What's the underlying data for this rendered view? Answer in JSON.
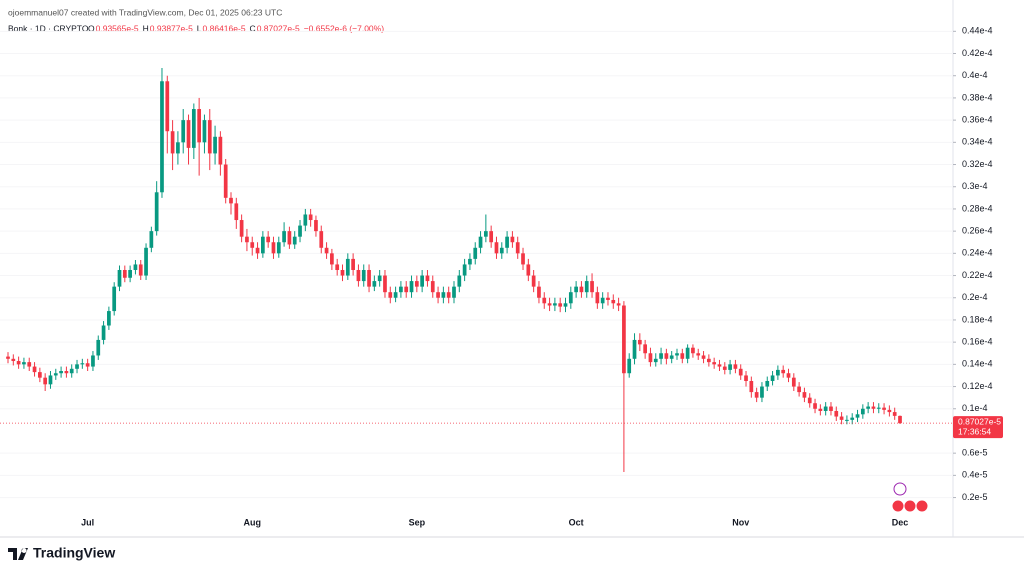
{
  "chart_data": {
    "type": "candlestick",
    "header": {
      "author_line": "ojoemmanuel07 created with TradingView.com, Dec 01, 2025 06:23 UTC",
      "symbol": "Bonk · 1D · CRYPTO",
      "ohlc": [
        {
          "key": "O",
          "value": "0.93565e-5"
        },
        {
          "key": "H",
          "value": "0.93877e-5"
        },
        {
          "key": "L",
          "value": "0.86416e-5"
        },
        {
          "key": "C",
          "value": "0.87027e-5"
        }
      ],
      "change": "−0.6552e-6 (−7.00%)"
    },
    "last_label": "0.87027e-5",
    "countdown": "17:36:54",
    "logo": "TradingView",
    "up_color": "#089981",
    "down_color": "#f23645",
    "grid": true,
    "ylim": [
      0.07,
      4.61
    ],
    "yticks": [
      {
        "value": 0.2,
        "label": "0.2e-5"
      },
      {
        "value": 0.4,
        "label": "0.4e-5"
      },
      {
        "value": 0.6,
        "label": "0.6e-5"
      },
      {
        "value": 1.0,
        "label": "0.1e-4"
      },
      {
        "value": 1.2,
        "label": "0.12e-4"
      },
      {
        "value": 1.4,
        "label": "0.14e-4"
      },
      {
        "value": 1.6,
        "label": "0.16e-4"
      },
      {
        "value": 1.8,
        "label": "0.18e-4"
      },
      {
        "value": 2.0,
        "label": "0.2e-4"
      },
      {
        "value": 2.2,
        "label": "0.22e-4"
      },
      {
        "value": 2.4,
        "label": "0.24e-4"
      },
      {
        "value": 2.6,
        "label": "0.26e-4"
      },
      {
        "value": 2.8,
        "label": "0.28e-4"
      },
      {
        "value": 3.0,
        "label": "0.3e-4"
      },
      {
        "value": 3.2,
        "label": "0.32e-4"
      },
      {
        "value": 3.4,
        "label": "0.34e-4"
      },
      {
        "value": 3.6,
        "label": "0.36e-4"
      },
      {
        "value": 3.8,
        "label": "0.38e-4"
      },
      {
        "value": 4.0,
        "label": "0.4e-4"
      },
      {
        "value": 4.2,
        "label": "0.42e-4"
      },
      {
        "value": 4.4,
        "label": "0.44e-4"
      }
    ],
    "categories": [
      null,
      null,
      null,
      null,
      null,
      null,
      null,
      null,
      null,
      null,
      null,
      null,
      null,
      null,
      null,
      "Jul",
      null,
      null,
      null,
      null,
      null,
      null,
      null,
      null,
      null,
      null,
      null,
      null,
      null,
      null,
      null,
      null,
      null,
      null,
      null,
      null,
      null,
      null,
      null,
      null,
      null,
      null,
      null,
      null,
      null,
      null,
      "Aug",
      null,
      null,
      null,
      null,
      null,
      null,
      null,
      null,
      null,
      null,
      null,
      null,
      null,
      null,
      null,
      null,
      null,
      null,
      null,
      null,
      null,
      null,
      null,
      null,
      null,
      null,
      null,
      null,
      null,
      null,
      "Sep",
      null,
      null,
      null,
      null,
      null,
      null,
      null,
      null,
      null,
      null,
      null,
      null,
      null,
      null,
      null,
      null,
      null,
      null,
      null,
      null,
      null,
      null,
      null,
      null,
      null,
      null,
      null,
      null,
      null,
      "Oct",
      null,
      null,
      null,
      null,
      null,
      null,
      null,
      null,
      null,
      null,
      null,
      null,
      null,
      null,
      null,
      null,
      null,
      null,
      null,
      null,
      null,
      null,
      null,
      null,
      null,
      null,
      null,
      null,
      null,
      null,
      "Nov",
      null,
      null,
      null,
      null,
      null,
      null,
      null,
      null,
      null,
      null,
      null,
      null,
      null,
      null,
      null,
      null,
      null,
      null,
      null,
      null,
      null,
      null,
      null,
      null,
      null,
      null,
      null,
      null,
      null,
      "Dec"
    ],
    "open": [
      1.47,
      1.45,
      1.43,
      1.4,
      1.42,
      1.38,
      1.33,
      1.28,
      1.22,
      1.3,
      1.32,
      1.34,
      1.32,
      1.36,
      1.4,
      1.41,
      1.38,
      1.48,
      1.62,
      1.75,
      1.88,
      2.1,
      2.25,
      2.18,
      2.25,
      2.3,
      2.2,
      2.45,
      2.6,
      2.95,
      3.95,
      3.5,
      3.3,
      3.4,
      3.6,
      3.35,
      3.7,
      3.4,
      3.6,
      3.3,
      3.45,
      3.2,
      2.9,
      2.85,
      2.7,
      2.55,
      2.5,
      2.45,
      2.4,
      2.55,
      2.5,
      2.4,
      2.5,
      2.6,
      2.48,
      2.55,
      2.65,
      2.75,
      2.7,
      2.6,
      2.45,
      2.4,
      2.3,
      2.25,
      2.2,
      2.35,
      2.25,
      2.15,
      2.25,
      2.1,
      2.15,
      2.2,
      2.05,
      2.0,
      2.05,
      2.1,
      2.05,
      2.15,
      2.1,
      2.2,
      2.15,
      2.05,
      2.0,
      2.05,
      2.0,
      2.1,
      2.2,
      2.3,
      2.35,
      2.45,
      2.55,
      2.6,
      2.5,
      2.4,
      2.45,
      2.55,
      2.5,
      2.4,
      2.3,
      2.2,
      2.1,
      2.0,
      1.95,
      1.93,
      1.95,
      1.92,
      1.95,
      2.05,
      2.1,
      2.05,
      2.15,
      2.05,
      1.95,
      2.0,
      1.98,
      1.95,
      1.93,
      1.32,
      1.45,
      1.62,
      1.58,
      1.5,
      1.42,
      1.45,
      1.5,
      1.45,
      1.48,
      1.5,
      1.45,
      1.55,
      1.5,
      1.48,
      1.45,
      1.42,
      1.4,
      1.38,
      1.35,
      1.4,
      1.36,
      1.3,
      1.25,
      1.15,
      1.1,
      1.2,
      1.25,
      1.3,
      1.35,
      1.32,
      1.28,
      1.2,
      1.15,
      1.1,
      1.05,
      1.0,
      0.98,
      1.02,
      0.98,
      0.93,
      0.9,
      0.9,
      0.92,
      0.95,
      1.0,
      1.02,
      1.0,
      1.01,
      0.99,
      0.97,
      0.93565
    ],
    "high": [
      1.51,
      1.49,
      1.47,
      1.46,
      1.46,
      1.42,
      1.37,
      1.32,
      1.34,
      1.36,
      1.38,
      1.38,
      1.4,
      1.44,
      1.45,
      1.45,
      1.52,
      1.66,
      1.79,
      1.92,
      2.14,
      2.29,
      2.29,
      2.29,
      2.34,
      2.34,
      2.49,
      2.64,
      3.05,
      4.07,
      4.0,
      3.6,
      3.5,
      3.7,
      3.65,
      3.75,
      3.8,
      3.65,
      3.7,
      3.55,
      3.5,
      3.25,
      2.95,
      2.9,
      2.75,
      2.62,
      2.55,
      2.5,
      2.6,
      2.6,
      2.55,
      2.55,
      2.68,
      2.64,
      2.6,
      2.7,
      2.8,
      2.8,
      2.74,
      2.65,
      2.5,
      2.44,
      2.35,
      2.3,
      2.4,
      2.4,
      2.3,
      2.3,
      2.3,
      2.2,
      2.25,
      2.25,
      2.1,
      2.1,
      2.15,
      2.15,
      2.2,
      2.2,
      2.25,
      2.25,
      2.2,
      2.1,
      2.1,
      2.1,
      2.15,
      2.25,
      2.35,
      2.4,
      2.5,
      2.6,
      2.75,
      2.65,
      2.55,
      2.5,
      2.6,
      2.6,
      2.55,
      2.45,
      2.35,
      2.25,
      2.15,
      2.05,
      2.0,
      2.0,
      2.0,
      2.0,
      2.1,
      2.15,
      2.15,
      2.2,
      2.22,
      2.1,
      2.05,
      2.05,
      2.03,
      2.0,
      1.97,
      1.5,
      1.68,
      1.68,
      1.62,
      1.55,
      1.5,
      1.55,
      1.54,
      1.52,
      1.54,
      1.54,
      1.58,
      1.58,
      1.54,
      1.52,
      1.49,
      1.46,
      1.44,
      1.42,
      1.44,
      1.44,
      1.4,
      1.34,
      1.29,
      1.19,
      1.24,
      1.29,
      1.34,
      1.39,
      1.39,
      1.36,
      1.32,
      1.24,
      1.19,
      1.14,
      1.09,
      1.04,
      1.06,
      1.06,
      1.02,
      0.97,
      0.94,
      0.96,
      0.99,
      1.04,
      1.06,
      1.06,
      1.05,
      1.05,
      1.03,
      1.01,
      0.93877
    ],
    "low": [
      1.41,
      1.39,
      1.36,
      1.36,
      1.34,
      1.29,
      1.24,
      1.16,
      1.18,
      1.26,
      1.28,
      1.28,
      1.28,
      1.32,
      1.36,
      1.34,
      1.34,
      1.44,
      1.58,
      1.71,
      1.84,
      2.06,
      2.14,
      2.14,
      2.21,
      2.16,
      2.16,
      2.41,
      2.56,
      2.9,
      3.3,
      3.15,
      3.2,
      3.3,
      3.2,
      3.25,
      3.1,
      3.3,
      3.15,
      3.2,
      3.1,
      2.85,
      2.75,
      2.62,
      2.5,
      2.42,
      2.38,
      2.35,
      2.36,
      2.45,
      2.35,
      2.36,
      2.46,
      2.44,
      2.44,
      2.5,
      2.6,
      2.64,
      2.55,
      2.4,
      2.35,
      2.25,
      2.2,
      2.15,
      2.16,
      2.2,
      2.1,
      2.1,
      2.05,
      2.06,
      2.1,
      2.0,
      1.95,
      1.96,
      2.0,
      2.0,
      2.0,
      2.05,
      2.05,
      2.1,
      2.0,
      1.95,
      1.95,
      1.95,
      1.95,
      2.05,
      2.15,
      2.25,
      2.3,
      2.4,
      2.5,
      2.45,
      2.35,
      2.35,
      2.4,
      2.45,
      2.35,
      2.25,
      2.15,
      2.05,
      1.95,
      1.9,
      1.88,
      1.88,
      1.87,
      1.87,
      1.9,
      2.0,
      2.0,
      2.0,
      2.0,
      1.9,
      1.9,
      1.93,
      1.9,
      1.88,
      0.43,
      1.28,
      1.4,
      1.52,
      1.45,
      1.38,
      1.38,
      1.4,
      1.4,
      1.41,
      1.44,
      1.41,
      1.41,
      1.46,
      1.44,
      1.41,
      1.38,
      1.36,
      1.34,
      1.31,
      1.31,
      1.32,
      1.26,
      1.2,
      1.1,
      1.06,
      1.06,
      1.16,
      1.21,
      1.26,
      1.28,
      1.24,
      1.16,
      1.11,
      1.06,
      1.01,
      0.96,
      0.94,
      0.94,
      0.94,
      0.89,
      0.86,
      0.86,
      0.86,
      0.88,
      0.91,
      0.96,
      0.96,
      0.96,
      0.95,
      0.93,
      0.9,
      0.86416
    ],
    "close": [
      1.45,
      1.43,
      1.4,
      1.42,
      1.38,
      1.33,
      1.28,
      1.22,
      1.3,
      1.32,
      1.34,
      1.32,
      1.36,
      1.4,
      1.41,
      1.38,
      1.48,
      1.62,
      1.75,
      1.88,
      2.1,
      2.25,
      2.18,
      2.25,
      2.3,
      2.2,
      2.45,
      2.6,
      2.95,
      3.95,
      3.5,
      3.3,
      3.4,
      3.6,
      3.35,
      3.7,
      3.4,
      3.6,
      3.3,
      3.45,
      3.2,
      2.9,
      2.85,
      2.7,
      2.55,
      2.5,
      2.45,
      2.4,
      2.55,
      2.5,
      2.4,
      2.5,
      2.6,
      2.48,
      2.55,
      2.65,
      2.75,
      2.7,
      2.6,
      2.45,
      2.4,
      2.3,
      2.25,
      2.2,
      2.35,
      2.25,
      2.15,
      2.25,
      2.1,
      2.15,
      2.2,
      2.05,
      2.0,
      2.05,
      2.1,
      2.05,
      2.15,
      2.1,
      2.2,
      2.15,
      2.05,
      2.0,
      2.05,
      2.0,
      2.1,
      2.2,
      2.3,
      2.35,
      2.45,
      2.55,
      2.6,
      2.5,
      2.4,
      2.45,
      2.55,
      2.5,
      2.4,
      2.3,
      2.2,
      2.1,
      2.0,
      1.95,
      1.93,
      1.95,
      1.92,
      1.95,
      2.05,
      2.1,
      2.05,
      2.15,
      2.05,
      1.95,
      2.0,
      1.98,
      1.95,
      1.93,
      1.32,
      1.45,
      1.62,
      1.58,
      1.5,
      1.42,
      1.45,
      1.5,
      1.45,
      1.48,
      1.5,
      1.45,
      1.55,
      1.5,
      1.48,
      1.45,
      1.42,
      1.4,
      1.38,
      1.35,
      1.4,
      1.36,
      1.3,
      1.25,
      1.15,
      1.1,
      1.2,
      1.25,
      1.3,
      1.35,
      1.32,
      1.28,
      1.2,
      1.15,
      1.1,
      1.05,
      1.0,
      0.98,
      1.02,
      0.98,
      0.93,
      0.9,
      0.9,
      0.92,
      0.95,
      1.0,
      1.02,
      1.0,
      1.01,
      0.99,
      0.97,
      0.936,
      0.87027
    ]
  }
}
